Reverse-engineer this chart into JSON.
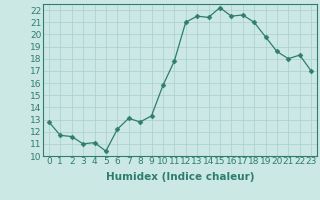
{
  "title": "",
  "xlabel": "Humidex (Indice chaleur)",
  "x": [
    0,
    1,
    2,
    3,
    4,
    5,
    6,
    7,
    8,
    9,
    10,
    11,
    12,
    13,
    14,
    15,
    16,
    17,
    18,
    19,
    20,
    21,
    22,
    23
  ],
  "y": [
    12.8,
    11.7,
    11.6,
    11.0,
    11.1,
    10.4,
    12.2,
    13.1,
    12.8,
    13.3,
    15.8,
    17.8,
    21.0,
    21.5,
    21.4,
    22.2,
    21.5,
    21.6,
    21.0,
    19.8,
    18.6,
    18.0,
    18.3,
    17.0
  ],
  "line_color": "#2e7d6e",
  "marker": "D",
  "marker_size": 2.5,
  "bg_color": "#cce8e4",
  "grid_color": "#aacfcb",
  "ylim": [
    10,
    22.5
  ],
  "yticks": [
    10,
    11,
    12,
    13,
    14,
    15,
    16,
    17,
    18,
    19,
    20,
    21,
    22
  ],
  "xlim": [
    -0.5,
    23.5
  ],
  "tick_fontsize": 6.5,
  "xlabel_fontsize": 7.5
}
